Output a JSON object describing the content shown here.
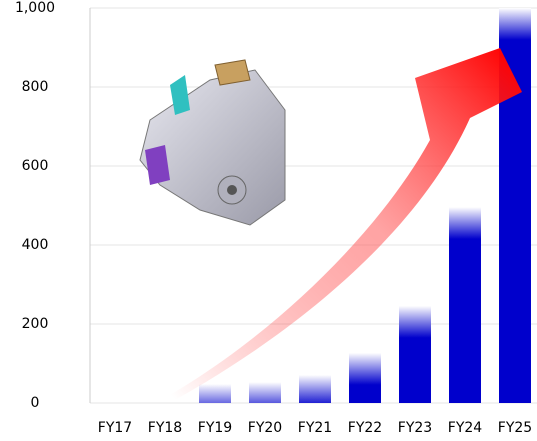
{
  "chart_data": {
    "type": "bar",
    "categories": [
      "FY17",
      "FY18",
      "FY19",
      "FY20",
      "FY21",
      "FY22",
      "FY23",
      "FY24",
      "FY25"
    ],
    "values": [
      0,
      0,
      48,
      53,
      71,
      127,
      246,
      496,
      1000
    ],
    "color": "#0000cc",
    "ylim": [
      0,
      1000
    ],
    "yticks": [
      0,
      200,
      400,
      600,
      800,
      {
        "value": 1000,
        "label": "1,000"
      }
    ],
    "grid": true
  }
}
